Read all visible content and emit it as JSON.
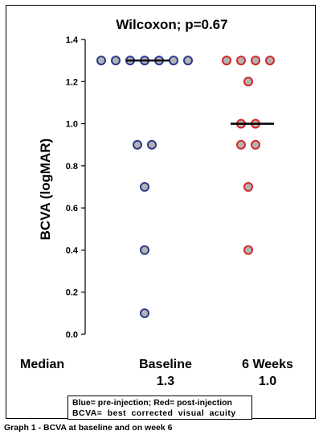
{
  "chart_data": {
    "type": "scatter",
    "title": "Wilcoxon; p=0.67",
    "ylabel": "BCVA (logMAR)",
    "xlabel": "",
    "ylim": [
      0.0,
      1.4
    ],
    "yticks": [
      "0.0",
      "0.2",
      "0.4",
      "0.6",
      "0.8",
      "1.0",
      "1.2",
      "1.4"
    ],
    "grid": false,
    "categories": [
      "Baseline",
      "6 Weeks"
    ],
    "median_label": "Median",
    "medians_text": [
      "1.3",
      "1.0"
    ],
    "medians": [
      1.3,
      1.0
    ],
    "series": [
      {
        "color": "#2b3a8f",
        "values": [
          1.3,
          1.3,
          1.3,
          1.3,
          1.3,
          1.3,
          1.3,
          0.9,
          0.9,
          0.7,
          0.4,
          0.1
        ]
      },
      {
        "color": "#d42a2a",
        "values": [
          1.3,
          1.3,
          1.3,
          1.3,
          1.2,
          1.0,
          1.0,
          0.9,
          0.9,
          0.7,
          0.4
        ]
      }
    ],
    "point_fill": "#b3b3b3",
    "legend": {
      "line1": "Blue= pre-injection; Red= post-injection",
      "line2": "BCVA= best corrected visual acuity"
    }
  },
  "caption": "Graph 1 - BCVA at baseline and on week 6"
}
